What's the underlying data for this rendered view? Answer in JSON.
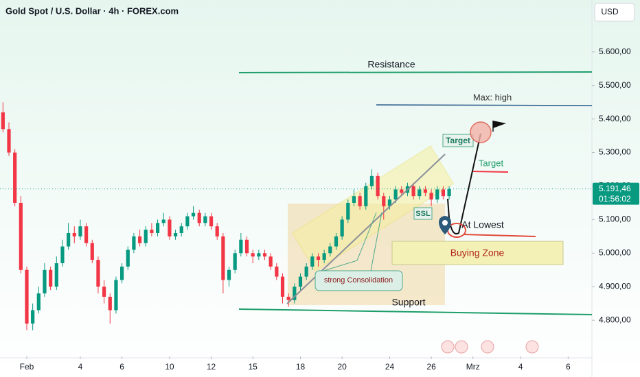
{
  "chart_data": {
    "type": "candlestick",
    "title": "Gold Spot / U.S. Dollar · 4h · FOREX.com",
    "currency": "USD",
    "up_color": "#089981",
    "down_color": "#f23645",
    "ylim": [
      4692,
      5755
    ],
    "yticks": [
      {
        "value": 4800,
        "label": "4.800,00"
      },
      {
        "value": 4900,
        "label": "4.900,00"
      },
      {
        "value": 5000,
        "label": "5.000,00"
      },
      {
        "value": 5100,
        "label": "5.100,00"
      },
      {
        "value": 5200,
        "label": "5.200,00"
      },
      {
        "value": 5300,
        "label": "5.300,00"
      },
      {
        "value": 5400,
        "label": "5.400,00"
      },
      {
        "value": 5500,
        "label": "5.500,00"
      },
      {
        "value": 5600,
        "label": "5.600,00"
      }
    ],
    "xlim": [
      -0.5,
      99
    ],
    "xticks": [
      {
        "value": 4,
        "label": "Feb"
      },
      {
        "value": 13,
        "label": "4"
      },
      {
        "value": 20,
        "label": "6"
      },
      {
        "value": 28,
        "label": "10"
      },
      {
        "value": 35,
        "label": "12"
      },
      {
        "value": 42,
        "label": "15"
      },
      {
        "value": 50,
        "label": "18"
      },
      {
        "value": 57,
        "label": "20"
      },
      {
        "value": 65,
        "label": "24"
      },
      {
        "value": 72,
        "label": "26"
      },
      {
        "value": 79,
        "label": "Mrz"
      },
      {
        "value": 87,
        "label": "4"
      },
      {
        "value": 95,
        "label": "6"
      }
    ],
    "last_price": {
      "value": 5191.46,
      "label": "5.191,46"
    },
    "countdown": "01:56:02",
    "ohlc": [
      [
        5420,
        5450,
        5360,
        5370
      ],
      [
        5370,
        5390,
        5290,
        5300
      ],
      [
        5300,
        5310,
        5140,
        5150
      ],
      [
        5150,
        5170,
        4940,
        4950
      ],
      [
        4950,
        4960,
        4770,
        4790
      ],
      [
        4790,
        4850,
        4770,
        4830
      ],
      [
        4830,
        4900,
        4820,
        4880
      ],
      [
        4880,
        4970,
        4870,
        4950
      ],
      [
        4950,
        4960,
        4890,
        4900
      ],
      [
        4900,
        4990,
        4890,
        4970
      ],
      [
        4970,
        5040,
        4960,
        5020
      ],
      [
        5020,
        5090,
        5010,
        5060
      ],
      [
        5060,
        5080,
        5030,
        5050
      ],
      [
        5050,
        5100,
        5040,
        5080
      ],
      [
        5080,
        5090,
        5020,
        5030
      ],
      [
        5030,
        5040,
        4970,
        4980
      ],
      [
        4980,
        4990,
        4880,
        4900
      ],
      [
        4900,
        4920,
        4850,
        4870
      ],
      [
        4870,
        4880,
        4790,
        4830
      ],
      [
        4830,
        4930,
        4820,
        4920
      ],
      [
        4920,
        4970,
        4910,
        4960
      ],
      [
        4960,
        5020,
        4950,
        5010
      ],
      [
        5010,
        5060,
        5000,
        5050
      ],
      [
        5050,
        5070,
        5020,
        5030
      ],
      [
        5030,
        5080,
        5020,
        5070
      ],
      [
        5070,
        5090,
        5050,
        5060
      ],
      [
        5060,
        5100,
        5050,
        5090
      ],
      [
        5090,
        5120,
        5080,
        5100
      ],
      [
        5100,
        5110,
        5040,
        5050
      ],
      [
        5050,
        5070,
        5040,
        5060
      ],
      [
        5060,
        5090,
        5050,
        5080
      ],
      [
        5080,
        5120,
        5070,
        5110
      ],
      [
        5110,
        5140,
        5100,
        5120
      ],
      [
        5120,
        5130,
        5080,
        5090
      ],
      [
        5090,
        5120,
        5080,
        5110
      ],
      [
        5110,
        5120,
        5070,
        5080
      ],
      [
        5080,
        5090,
        5040,
        5050
      ],
      [
        5050,
        5060,
        4880,
        4920
      ],
      [
        4920,
        4960,
        4900,
        4950
      ],
      [
        4950,
        5010,
        4940,
        5000
      ],
      [
        5000,
        5060,
        4990,
        5040
      ],
      [
        5040,
        5050,
        4990,
        5000
      ],
      [
        5000,
        5010,
        4970,
        4990
      ],
      [
        4990,
        5010,
        4980,
        5000
      ],
      [
        5000,
        5010,
        4980,
        4990
      ],
      [
        4990,
        5000,
        4950,
        4960
      ],
      [
        4960,
        4970,
        4920,
        4930
      ],
      [
        4930,
        4940,
        4850,
        4870
      ],
      [
        4870,
        4880,
        4840,
        4860
      ],
      [
        4860,
        4910,
        4850,
        4900
      ],
      [
        4900,
        4940,
        4890,
        4930
      ],
      [
        4930,
        4970,
        4920,
        4960
      ],
      [
        4960,
        5000,
        4950,
        4990
      ],
      [
        4990,
        5000,
        4960,
        4980
      ],
      [
        4980,
        5010,
        4970,
        5000
      ],
      [
        5000,
        5030,
        4990,
        5020
      ],
      [
        5020,
        5060,
        5010,
        5050
      ],
      [
        5050,
        5110,
        5040,
        5100
      ],
      [
        5100,
        5160,
        5090,
        5150
      ],
      [
        5150,
        5190,
        5140,
        5170
      ],
      [
        5170,
        5180,
        5130,
        5140
      ],
      [
        5140,
        5210,
        5130,
        5200
      ],
      [
        5200,
        5250,
        5190,
        5230
      ],
      [
        5230,
        5240,
        5160,
        5170
      ],
      [
        5170,
        5180,
        5100,
        5140
      ],
      [
        5140,
        5170,
        5130,
        5160
      ],
      [
        5160,
        5200,
        5150,
        5190
      ],
      [
        5190,
        5200,
        5170,
        5180
      ],
      [
        5180,
        5210,
        5170,
        5200
      ],
      [
        5200,
        5210,
        5160,
        5170
      ],
      [
        5170,
        5200,
        5160,
        5190
      ],
      [
        5190,
        5200,
        5170,
        5180
      ],
      [
        5180,
        5190,
        5140,
        5160
      ],
      [
        5160,
        5200,
        5150,
        5190
      ],
      [
        5190,
        5200,
        5160,
        5170
      ],
      [
        5170,
        5200,
        5160,
        5191.46
      ]
    ],
    "annotations": {
      "resistance": "Resistance",
      "max_high": "Max: high",
      "target_box": "Target",
      "target": "Target",
      "ssl": "SSL",
      "at_lowest": "At Lowest",
      "buying_zone": "Buying Zone",
      "consolidation": "strong Consolidation",
      "support": "Support"
    }
  }
}
